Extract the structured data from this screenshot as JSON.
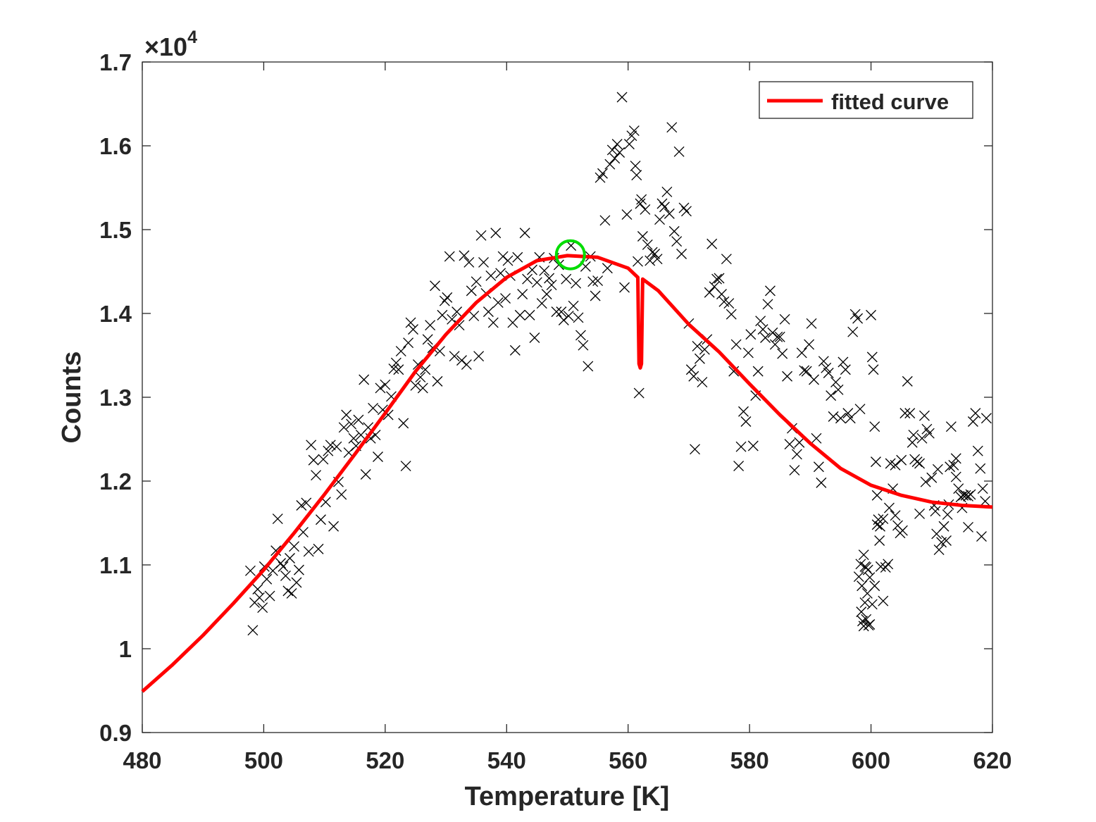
{
  "chart_data": {
    "type": "scatter",
    "xlabel": "Temperature [K]",
    "ylabel": "Counts",
    "exponent_label": "×10",
    "exponent_power": "4",
    "xlim": [
      480,
      620
    ],
    "ylim": [
      0.9,
      1.7
    ],
    "x_ticks": [
      480,
      500,
      520,
      540,
      560,
      580,
      600,
      620
    ],
    "y_ticks": [
      0.9,
      1.0,
      1.1,
      1.2,
      1.3,
      1.4,
      1.5,
      1.6,
      1.7
    ],
    "x_tick_labels": [
      "480",
      "500",
      "520",
      "540",
      "560",
      "580",
      "600",
      "620"
    ],
    "y_tick_labels": [
      "0.9",
      "1",
      "1.1",
      "1.2",
      "1.3",
      "1.4",
      "1.5",
      "1.6",
      "1.7"
    ],
    "grid": false,
    "legend": {
      "position": "top-right",
      "entries": [
        "fitted curve"
      ]
    },
    "colors": {
      "fit": "#ff0000",
      "points": "#000000",
      "marker_circle": "#00dd00",
      "axes": "#262626"
    },
    "peak_marker": {
      "x": 550.5,
      "y": 1.47
    },
    "fitted_curve": {
      "name": "fitted curve",
      "x": [
        480,
        485,
        490,
        495,
        500,
        505,
        510,
        515,
        520,
        525,
        530,
        535,
        540,
        545,
        550,
        555,
        560,
        561.6,
        561.8,
        562.0,
        562.2,
        562.4,
        565,
        570,
        575,
        580,
        585,
        590,
        595,
        600,
        605,
        610,
        615,
        620
      ],
      "y": [
        0.949,
        0.981,
        1.016,
        1.054,
        1.094,
        1.138,
        1.184,
        1.232,
        1.281,
        1.331,
        1.375,
        1.413,
        1.443,
        1.463,
        1.469,
        1.467,
        1.454,
        1.443,
        1.34,
        1.335,
        1.34,
        1.441,
        1.427,
        1.387,
        1.354,
        1.316,
        1.279,
        1.245,
        1.215,
        1.195,
        1.183,
        1.175,
        1.171,
        1.169
      ]
    },
    "scatter_points": [
      [
        497.8,
        1.093
      ],
      [
        498.2,
        1.022
      ],
      [
        498.5,
        1.055
      ],
      [
        499.0,
        1.071
      ],
      [
        499.3,
        1.061
      ],
      [
        499.8,
        1.049
      ],
      [
        500.1,
        1.098
      ],
      [
        500.5,
        1.083
      ],
      [
        501.0,
        1.063
      ],
      [
        501.5,
        1.093
      ],
      [
        502.0,
        1.117
      ],
      [
        502.3,
        1.155
      ],
      [
        502.8,
        1.102
      ],
      [
        503.2,
        1.098
      ],
      [
        503.6,
        1.087
      ],
      [
        504.0,
        1.069
      ],
      [
        504.3,
        1.108
      ],
      [
        504.6,
        1.066
      ],
      [
        505.0,
        1.122
      ],
      [
        505.4,
        1.079
      ],
      [
        505.8,
        1.094
      ],
      [
        506.2,
        1.171
      ],
      [
        506.5,
        1.139
      ],
      [
        507.0,
        1.174
      ],
      [
        507.4,
        1.116
      ],
      [
        507.8,
        1.243
      ],
      [
        508.2,
        1.225
      ],
      [
        508.6,
        1.207
      ],
      [
        509.0,
        1.119
      ],
      [
        509.4,
        1.154
      ],
      [
        509.8,
        1.226
      ],
      [
        510.2,
        1.175
      ],
      [
        510.6,
        1.236
      ],
      [
        511.0,
        1.243
      ],
      [
        511.5,
        1.146
      ],
      [
        512.0,
        1.241
      ],
      [
        512.3,
        1.199
      ],
      [
        512.8,
        1.184
      ],
      [
        513.2,
        1.264
      ],
      [
        513.6,
        1.279
      ],
      [
        514.0,
        1.234
      ],
      [
        514.4,
        1.268
      ],
      [
        514.8,
        1.251
      ],
      [
        515.2,
        1.242
      ],
      [
        515.6,
        1.273
      ],
      [
        516.0,
        1.255
      ],
      [
        516.5,
        1.321
      ],
      [
        516.8,
        1.208
      ],
      [
        517.2,
        1.264
      ],
      [
        517.6,
        1.251
      ],
      [
        518.0,
        1.287
      ],
      [
        518.4,
        1.255
      ],
      [
        518.8,
        1.229
      ],
      [
        519.2,
        1.311
      ],
      [
        519.6,
        1.285
      ],
      [
        520.0,
        1.315
      ],
      [
        520.5,
        1.279
      ],
      [
        521.0,
        1.301
      ],
      [
        521.4,
        1.334
      ],
      [
        521.8,
        1.341
      ],
      [
        522.2,
        1.333
      ],
      [
        522.6,
        1.355
      ],
      [
        523.0,
        1.269
      ],
      [
        523.4,
        1.218
      ],
      [
        523.8,
        1.365
      ],
      [
        524.2,
        1.389
      ],
      [
        524.6,
        1.381
      ],
      [
        525.0,
        1.314
      ],
      [
        525.4,
        1.339
      ],
      [
        525.8,
        1.324
      ],
      [
        526.2,
        1.311
      ],
      [
        526.6,
        1.333
      ],
      [
        527.0,
        1.369
      ],
      [
        527.4,
        1.386
      ],
      [
        527.8,
        1.359
      ],
      [
        528.2,
        1.433
      ],
      [
        528.6,
        1.319
      ],
      [
        529.0,
        1.355
      ],
      [
        529.4,
        1.398
      ],
      [
        529.8,
        1.415
      ],
      [
        530.2,
        1.419
      ],
      [
        530.6,
        1.468
      ],
      [
        531.0,
        1.393
      ],
      [
        531.4,
        1.349
      ],
      [
        531.8,
        1.402
      ],
      [
        532.2,
        1.386
      ],
      [
        532.6,
        1.344
      ],
      [
        533.0,
        1.469
      ],
      [
        533.4,
        1.339
      ],
      [
        533.8,
        1.461
      ],
      [
        534.2,
        1.427
      ],
      [
        534.6,
        1.397
      ],
      [
        535.0,
        1.438
      ],
      [
        535.4,
        1.349
      ],
      [
        535.8,
        1.493
      ],
      [
        536.2,
        1.461
      ],
      [
        536.6,
        1.424
      ],
      [
        537.0,
        1.402
      ],
      [
        537.4,
        1.445
      ],
      [
        537.8,
        1.389
      ],
      [
        538.2,
        1.496
      ],
      [
        538.6,
        1.413
      ],
      [
        539.0,
        1.448
      ],
      [
        539.4,
        1.468
      ],
      [
        539.8,
        1.418
      ],
      [
        540.2,
        1.463
      ],
      [
        540.6,
        1.445
      ],
      [
        541.0,
        1.389
      ],
      [
        541.4,
        1.356
      ],
      [
        541.8,
        1.467
      ],
      [
        542.2,
        1.398
      ],
      [
        542.6,
        1.423
      ],
      [
        543.0,
        1.496
      ],
      [
        543.4,
        1.441
      ],
      [
        543.8,
        1.398
      ],
      [
        544.2,
        1.452
      ],
      [
        544.6,
        1.371
      ],
      [
        545.0,
        1.437
      ],
      [
        545.4,
        1.467
      ],
      [
        545.8,
        1.412
      ],
      [
        546.2,
        1.451
      ],
      [
        546.6,
        1.423
      ],
      [
        547.0,
        1.442
      ],
      [
        547.4,
        1.434
      ],
      [
        547.8,
        1.466
      ],
      [
        548.2,
        1.402
      ],
      [
        548.6,
        1.458
      ],
      [
        549.0,
        1.402
      ],
      [
        549.4,
        1.392
      ],
      [
        549.8,
        1.441
      ],
      [
        550.2,
        1.397
      ],
      [
        550.6,
        1.481
      ],
      [
        551.0,
        1.409
      ],
      [
        551.4,
        1.436
      ],
      [
        551.8,
        1.395
      ],
      [
        552.2,
        1.374
      ],
      [
        552.6,
        1.362
      ],
      [
        553.0,
        1.456
      ],
      [
        553.4,
        1.337
      ],
      [
        553.8,
        1.468
      ],
      [
        554.2,
        1.438
      ],
      [
        554.6,
        1.421
      ],
      [
        555.0,
        1.439
      ],
      [
        555.4,
        1.562
      ],
      [
        555.8,
        1.567
      ],
      [
        556.2,
        1.511
      ],
      [
        556.6,
        1.454
      ],
      [
        557.0,
        1.578
      ],
      [
        557.4,
        1.595
      ],
      [
        557.8,
        1.585
      ],
      [
        558.2,
        1.602
      ],
      [
        558.6,
        1.592
      ],
      [
        559.0,
        1.658
      ],
      [
        559.4,
        1.431
      ],
      [
        559.8,
        1.518
      ],
      [
        560.2,
        1.602
      ],
      [
        560.6,
        1.612
      ],
      [
        561.0,
        1.618
      ],
      [
        561.2,
        1.576
      ],
      [
        561.4,
        1.565
      ],
      [
        561.6,
        1.462
      ],
      [
        561.8,
        1.305
      ],
      [
        562.0,
        1.531
      ],
      [
        562.2,
        1.536
      ],
      [
        562.4,
        1.492
      ],
      [
        562.8,
        1.524
      ],
      [
        563.2,
        1.482
      ],
      [
        563.6,
        1.463
      ],
      [
        564.0,
        1.473
      ],
      [
        564.4,
        1.471
      ],
      [
        564.8,
        1.465
      ],
      [
        565.2,
        1.512
      ],
      [
        565.6,
        1.531
      ],
      [
        566.0,
        1.527
      ],
      [
        566.4,
        1.545
      ],
      [
        566.8,
        1.519
      ],
      [
        567.2,
        1.622
      ],
      [
        567.6,
        1.498
      ],
      [
        568.0,
        1.486
      ],
      [
        568.4,
        1.593
      ],
      [
        568.8,
        1.471
      ],
      [
        569.2,
        1.526
      ],
      [
        569.6,
        1.522
      ],
      [
        570.0,
        1.388
      ],
      [
        570.4,
        1.333
      ],
      [
        570.8,
        1.325
      ],
      [
        571.0,
        1.238
      ],
      [
        571.4,
        1.361
      ],
      [
        571.8,
        1.346
      ],
      [
        572.2,
        1.318
      ],
      [
        572.6,
        1.357
      ],
      [
        573.0,
        1.369
      ],
      [
        573.4,
        1.425
      ],
      [
        573.8,
        1.483
      ],
      [
        574.2,
        1.432
      ],
      [
        574.6,
        1.441
      ],
      [
        575.0,
        1.442
      ],
      [
        575.4,
        1.423
      ],
      [
        575.8,
        1.414
      ],
      [
        576.2,
        1.465
      ],
      [
        576.6,
        1.412
      ],
      [
        577.0,
        1.399
      ],
      [
        577.4,
        1.331
      ],
      [
        577.8,
        1.363
      ],
      [
        578.2,
        1.218
      ],
      [
        578.6,
        1.241
      ],
      [
        579.0,
        1.283
      ],
      [
        579.4,
        1.271
      ],
      [
        579.8,
        1.353
      ],
      [
        580.2,
        1.375
      ],
      [
        580.6,
        1.242
      ],
      [
        581.0,
        1.302
      ],
      [
        581.4,
        1.331
      ],
      [
        581.8,
        1.391
      ],
      [
        582.2,
        1.381
      ],
      [
        582.6,
        1.371
      ],
      [
        583.0,
        1.411
      ],
      [
        583.4,
        1.427
      ],
      [
        583.8,
        1.377
      ],
      [
        584.2,
        1.363
      ],
      [
        584.6,
        1.372
      ],
      [
        585.0,
        1.372
      ],
      [
        585.4,
        1.352
      ],
      [
        585.8,
        1.393
      ],
      [
        586.2,
        1.325
      ],
      [
        586.6,
        1.244
      ],
      [
        587.0,
        1.263
      ],
      [
        587.4,
        1.213
      ],
      [
        587.8,
        1.232
      ],
      [
        588.2,
        1.246
      ],
      [
        588.6,
        1.353
      ],
      [
        589.0,
        1.332
      ],
      [
        589.4,
        1.331
      ],
      [
        589.8,
        1.363
      ],
      [
        590.2,
        1.388
      ],
      [
        590.6,
        1.321
      ],
      [
        591.0,
        1.251
      ],
      [
        591.4,
        1.217
      ],
      [
        591.8,
        1.198
      ],
      [
        592.2,
        1.343
      ],
      [
        592.6,
        1.335
      ],
      [
        593.0,
        1.329
      ],
      [
        593.4,
        1.302
      ],
      [
        593.8,
        1.277
      ],
      [
        594.2,
        1.318
      ],
      [
        594.6,
        1.309
      ],
      [
        595.0,
        1.275
      ],
      [
        595.4,
        1.342
      ],
      [
        595.8,
        1.333
      ],
      [
        596.2,
        1.281
      ],
      [
        596.6,
        1.275
      ],
      [
        597.0,
        1.378
      ],
      [
        597.4,
        1.399
      ],
      [
        597.8,
        1.394
      ],
      [
        598.2,
        1.286
      ],
      [
        598.4,
        1.044
      ],
      [
        598.6,
        1.033
      ],
      [
        598.8,
        1.027
      ],
      [
        599.0,
        1.098
      ],
      [
        599.2,
        1.097
      ],
      [
        599.4,
        1.066
      ],
      [
        599.6,
        1.028
      ],
      [
        599.8,
        1.085
      ],
      [
        600.0,
        1.398
      ],
      [
        600.2,
        1.348
      ],
      [
        600.4,
        1.333
      ],
      [
        600.6,
        1.265
      ],
      [
        600.8,
        1.223
      ],
      [
        601.0,
        1.183
      ],
      [
        601.2,
        1.154
      ],
      [
        601.4,
        1.129
      ],
      [
        601.6,
        1.098
      ],
      [
        602.0,
        1.057
      ],
      [
        602.4,
        1.097
      ],
      [
        602.8,
        1.101
      ],
      [
        603.2,
        1.221
      ],
      [
        603.6,
        1.191
      ],
      [
        604.0,
        1.159
      ],
      [
        604.4,
        1.147
      ],
      [
        604.8,
        1.138
      ],
      [
        605.2,
        1.141
      ],
      [
        605.6,
        1.281
      ],
      [
        606.0,
        1.319
      ],
      [
        606.4,
        1.281
      ],
      [
        606.8,
        1.246
      ],
      [
        607.2,
        1.226
      ],
      [
        607.6,
        1.223
      ],
      [
        608.0,
        1.221
      ],
      [
        608.4,
        1.251
      ],
      [
        608.8,
        1.278
      ],
      [
        609.2,
        1.262
      ],
      [
        609.6,
        1.257
      ],
      [
        610.0,
        1.204
      ],
      [
        610.4,
        1.171
      ],
      [
        610.8,
        1.137
      ],
      [
        611.2,
        1.118
      ],
      [
        611.6,
        1.127
      ],
      [
        612.0,
        1.146
      ],
      [
        612.4,
        1.129
      ],
      [
        612.8,
        1.172
      ],
      [
        613.2,
        1.265
      ],
      [
        613.6,
        1.219
      ],
      [
        614.0,
        1.227
      ],
      [
        614.4,
        1.191
      ],
      [
        614.8,
        1.181
      ],
      [
        615.2,
        1.183
      ],
      [
        615.6,
        1.183
      ],
      [
        616.0,
        1.182
      ],
      [
        616.4,
        1.184
      ],
      [
        616.8,
        1.271
      ],
      [
        617.2,
        1.281
      ],
      [
        617.6,
        1.236
      ],
      [
        618.0,
        1.215
      ],
      [
        618.4,
        1.191
      ],
      [
        618.8,
        1.176
      ],
      [
        619.0,
        1.275
      ],
      [
        618.2,
        1.134
      ],
      [
        616.0,
        1.145
      ],
      [
        615.0,
        1.168
      ],
      [
        614.0,
        1.205
      ],
      [
        613.0,
        1.217
      ],
      [
        611.0,
        1.214
      ],
      [
        610.6,
        1.164
      ],
      [
        612.6,
        1.16
      ],
      [
        609.0,
        1.199
      ],
      [
        608.0,
        1.161
      ],
      [
        607.0,
        1.255
      ],
      [
        605.0,
        1.225
      ],
      [
        604.0,
        1.219
      ],
      [
        603.0,
        1.168
      ],
      [
        602.0,
        1.155
      ],
      [
        601.5,
        1.146
      ],
      [
        601.0,
        1.148
      ],
      [
        600.6,
        1.075
      ],
      [
        600.2,
        1.053
      ],
      [
        599.5,
        1.094
      ],
      [
        598.8,
        1.112
      ],
      [
        598.3,
        1.101
      ],
      [
        598.0,
        1.086
      ],
      [
        598.5,
        1.075
      ],
      [
        599.0,
        1.055
      ],
      [
        599.2,
        1.035
      ],
      [
        599.8,
        1.029
      ]
    ]
  }
}
